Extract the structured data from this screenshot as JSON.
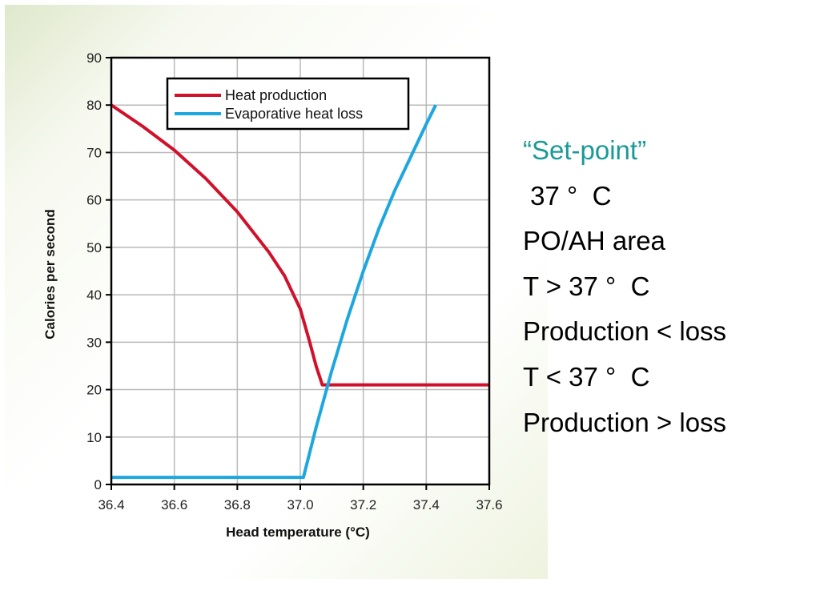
{
  "chart_data": {
    "type": "line",
    "xlabel": "Head temperature (°C)",
    "ylabel": "Calories per second",
    "xlim": [
      36.4,
      37.6
    ],
    "ylim": [
      0,
      90
    ],
    "xticks": [
      "36.4",
      "36.6",
      "36.8",
      "37.0",
      "37.2",
      "37.4",
      "37.6"
    ],
    "yticks": [
      "0",
      "10",
      "20",
      "30",
      "40",
      "50",
      "60",
      "70",
      "80",
      "90"
    ],
    "grid": true,
    "legend_position": "top-center",
    "series": [
      {
        "name": "Heat production",
        "color": "#d0112b",
        "x": [
          36.4,
          36.5,
          36.6,
          36.7,
          36.8,
          36.9,
          36.95,
          37.0,
          37.03,
          37.05,
          37.07,
          37.2,
          37.4,
          37.6
        ],
        "y": [
          80,
          75.5,
          70.5,
          64.5,
          57.5,
          49,
          44,
          37,
          30,
          25,
          21,
          21,
          21,
          21
        ]
      },
      {
        "name": "Evaporative heat loss",
        "color": "#1ea7df",
        "x": [
          36.4,
          36.6,
          36.8,
          37.0,
          37.01,
          37.05,
          37.1,
          37.15,
          37.2,
          37.25,
          37.3,
          37.35,
          37.4,
          37.43
        ],
        "y": [
          1.5,
          1.5,
          1.5,
          1.5,
          1.5,
          12,
          24,
          35,
          45,
          54,
          62,
          69,
          76,
          80
        ]
      }
    ]
  },
  "notes": {
    "set_point": "“Set-point”",
    "temp": " 37 °  C",
    "area": "PO/AH area",
    "above": "T > 37 °  C",
    "prod_less": "Production < loss",
    "below": "T < 37 °  C",
    "prod_more": "Production > loss"
  },
  "colors": {
    "accent": "#1a9a96",
    "production": "#d0112b",
    "evaporative": "#1ea7df"
  }
}
